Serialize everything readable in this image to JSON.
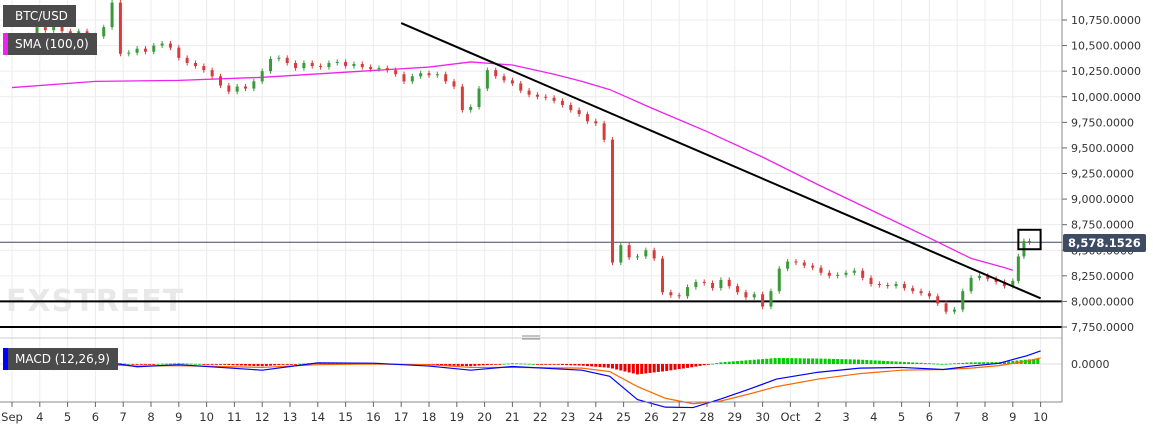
{
  "chart_data": {
    "type": "candlestick",
    "symbol": "BTC/USD",
    "brand": "FXSTREET",
    "price_axis": {
      "ticks": [
        "10,750.0000",
        "10,500.0000",
        "10,250.0000",
        "10,000.0000",
        "9,750.0000",
        "9,500.0000",
        "9,250.0000",
        "9,000.0000",
        "8,750.0000",
        "8,500.0000",
        "8,250.0000",
        "8,000.0000",
        "7,750.0000"
      ],
      "range": [
        7700,
        10950
      ]
    },
    "current_price": 8578.1526,
    "current_price_label": "8,578.1526",
    "x_ticks": [
      "Sep",
      "4",
      "5",
      "6",
      "7",
      "8",
      "9",
      "10",
      "11",
      "12",
      "13",
      "14",
      "15",
      "16",
      "17",
      "18",
      "19",
      "20",
      "21",
      "22",
      "23",
      "24",
      "25",
      "26",
      "27",
      "28",
      "29",
      "30",
      "Oct",
      "2",
      "3",
      "4",
      "5",
      "6",
      "7",
      "8",
      "9",
      "10"
    ],
    "price_path": [
      [
        3,
        10520
      ],
      [
        3.3,
        10540
      ],
      [
        3.6,
        10600
      ],
      [
        3.9,
        10680
      ],
      [
        4.2,
        10650
      ],
      [
        4.5,
        10700
      ],
      [
        4.8,
        10640
      ],
      [
        5.1,
        10560
      ],
      [
        5.4,
        10640
      ],
      [
        5.7,
        10600
      ],
      [
        6.0,
        10590
      ],
      [
        6.3,
        10680
      ],
      [
        6.6,
        10920
      ],
      [
        6.9,
        10420
      ],
      [
        7.2,
        10430
      ],
      [
        7.5,
        10470
      ],
      [
        7.8,
        10440
      ],
      [
        8.1,
        10500
      ],
      [
        8.4,
        10520
      ],
      [
        8.7,
        10480
      ],
      [
        9.0,
        10380
      ],
      [
        9.3,
        10330
      ],
      [
        9.6,
        10300
      ],
      [
        9.9,
        10260
      ],
      [
        10.2,
        10200
      ],
      [
        10.5,
        10110
      ],
      [
        10.8,
        10050
      ],
      [
        11.1,
        10100
      ],
      [
        11.4,
        10080
      ],
      [
        11.7,
        10150
      ],
      [
        12.0,
        10250
      ],
      [
        12.3,
        10370
      ],
      [
        12.6,
        10380
      ],
      [
        12.9,
        10330
      ],
      [
        13.2,
        10280
      ],
      [
        13.5,
        10330
      ],
      [
        13.8,
        10300
      ],
      [
        14.1,
        10290
      ],
      [
        14.4,
        10330
      ],
      [
        14.7,
        10340
      ],
      [
        15.0,
        10300
      ],
      [
        15.3,
        10320
      ],
      [
        15.6,
        10290
      ],
      [
        15.9,
        10270
      ],
      [
        16.2,
        10280
      ],
      [
        16.5,
        10260
      ],
      [
        16.8,
        10220
      ],
      [
        17.1,
        10150
      ],
      [
        17.4,
        10200
      ],
      [
        17.7,
        10230
      ],
      [
        18.0,
        10210
      ],
      [
        18.3,
        10220
      ],
      [
        18.6,
        10150
      ],
      [
        18.9,
        10100
      ],
      [
        19.2,
        9870
      ],
      [
        19.5,
        9900
      ],
      [
        19.8,
        10080
      ],
      [
        20.1,
        10260
      ],
      [
        20.4,
        10200
      ],
      [
        20.7,
        10160
      ],
      [
        21.0,
        10130
      ],
      [
        21.3,
        10060
      ],
      [
        21.6,
        10020
      ],
      [
        21.9,
        10000
      ],
      [
        22.2,
        9990
      ],
      [
        22.5,
        9960
      ],
      [
        22.8,
        9920
      ],
      [
        23.1,
        9870
      ],
      [
        23.4,
        9830
      ],
      [
        23.7,
        9760
      ],
      [
        24.0,
        9740
      ],
      [
        24.3,
        9580
      ],
      [
        24.6,
        8380
      ],
      [
        24.9,
        8550
      ],
      [
        25.2,
        8430
      ],
      [
        25.5,
        8440
      ],
      [
        25.8,
        8500
      ],
      [
        26.1,
        8420
      ],
      [
        26.4,
        8090
      ],
      [
        26.7,
        8060
      ],
      [
        27.0,
        8050
      ],
      [
        27.3,
        8140
      ],
      [
        27.6,
        8190
      ],
      [
        27.9,
        8180
      ],
      [
        28.2,
        8130
      ],
      [
        28.5,
        8210
      ],
      [
        28.8,
        8150
      ],
      [
        29.1,
        8090
      ],
      [
        29.4,
        8040
      ],
      [
        29.7,
        8070
      ],
      [
        30.0,
        7950
      ],
      [
        30.3,
        8100
      ],
      [
        30.6,
        8320
      ],
      [
        30.9,
        8390
      ],
      [
        31.2,
        8380
      ],
      [
        31.5,
        8350
      ],
      [
        31.8,
        8330
      ],
      [
        32.1,
        8280
      ],
      [
        32.4,
        8250
      ],
      [
        32.7,
        8260
      ],
      [
        33.0,
        8280
      ],
      [
        33.3,
        8300
      ],
      [
        33.6,
        8230
      ],
      [
        33.9,
        8170
      ],
      [
        34.2,
        8160
      ],
      [
        34.5,
        8150
      ],
      [
        34.8,
        8170
      ],
      [
        35.1,
        8130
      ],
      [
        35.4,
        8100
      ],
      [
        35.7,
        8080
      ],
      [
        36.0,
        8050
      ],
      [
        36.3,
        7980
      ],
      [
        36.6,
        7900
      ],
      [
        36.9,
        7920
      ],
      [
        37.2,
        8100
      ],
      [
        37.5,
        8230
      ],
      [
        37.8,
        8250
      ],
      [
        38.1,
        8220
      ],
      [
        38.4,
        8190
      ],
      [
        38.7,
        8150
      ],
      [
        39.0,
        8200
      ],
      [
        39.2,
        8440
      ],
      [
        39.4,
        8590
      ],
      [
        39.6,
        8580
      ]
    ],
    "sma": {
      "label": "SMA (100,0)",
      "color": "#ee22ee",
      "values": [
        [
          3,
          10090
        ],
        [
          6,
          10150
        ],
        [
          9,
          10160
        ],
        [
          12,
          10190
        ],
        [
          15,
          10240
        ],
        [
          18,
          10290
        ],
        [
          19.5,
          10340
        ],
        [
          21,
          10310
        ],
        [
          22.5,
          10220
        ],
        [
          23.5,
          10150
        ],
        [
          24.5,
          10070
        ],
        [
          26,
          9890
        ],
        [
          28,
          9660
        ],
        [
          30,
          9410
        ],
        [
          32,
          9140
        ],
        [
          34,
          8880
        ],
        [
          36,
          8620
        ],
        [
          37.5,
          8420
        ],
        [
          38.7,
          8330
        ],
        [
          39,
          8305
        ]
      ]
    },
    "trendline": {
      "color": "#000000",
      "points": [
        [
          17.0,
          10720
        ],
        [
          40.0,
          8030
        ]
      ]
    },
    "horizontal_levels": [
      8000,
      7750
    ],
    "annotation_box": {
      "x": [
        39.2,
        40.0
      ],
      "y": [
        8510,
        8700
      ]
    },
    "macd": {
      "label": "MACD (12,26,9)",
      "zero_label": "0.0000",
      "color_macd": "#0000ff",
      "color_signal": "#ff6600",
      "hist_pos_color": "#00cc00",
      "hist_neg_color": "#ee0000",
      "macd_line": [
        [
          3,
          0
        ],
        [
          4.5,
          -40
        ],
        [
          6,
          25
        ],
        [
          7.5,
          -20
        ],
        [
          9,
          -5
        ],
        [
          12,
          -45
        ],
        [
          14,
          8
        ],
        [
          16,
          6
        ],
        [
          18,
          -15
        ],
        [
          19.5,
          -45
        ],
        [
          21,
          -18
        ],
        [
          23.5,
          -45
        ],
        [
          24.5,
          -90
        ],
        [
          25.5,
          -260
        ],
        [
          26.5,
          -315
        ],
        [
          27.5,
          -318
        ],
        [
          28.5,
          -255
        ],
        [
          29.5,
          -185
        ],
        [
          30.5,
          -110
        ],
        [
          32,
          -60
        ],
        [
          33.5,
          -30
        ],
        [
          35,
          -25
        ],
        [
          36.5,
          -40
        ],
        [
          37.5,
          -15
        ],
        [
          38.5,
          5
        ],
        [
          39.5,
          60
        ],
        [
          40,
          95
        ]
      ],
      "signal_line": [
        [
          3,
          -5
        ],
        [
          4.5,
          -12
        ],
        [
          6,
          0
        ],
        [
          7.5,
          -15
        ],
        [
          9,
          -12
        ],
        [
          12,
          -25
        ],
        [
          14,
          -5
        ],
        [
          16,
          0
        ],
        [
          18,
          -5
        ],
        [
          19.5,
          -25
        ],
        [
          21,
          -25
        ],
        [
          23.5,
          -30
        ],
        [
          24.5,
          -55
        ],
        [
          25.5,
          -165
        ],
        [
          26.5,
          -250
        ],
        [
          27.5,
          -290
        ],
        [
          28.5,
          -270
        ],
        [
          29.5,
          -220
        ],
        [
          30.5,
          -165
        ],
        [
          32,
          -110
        ],
        [
          33.5,
          -70
        ],
        [
          35,
          -45
        ],
        [
          36.5,
          -40
        ],
        [
          37.5,
          -30
        ],
        [
          38.5,
          -12
        ],
        [
          39.5,
          20
        ],
        [
          40,
          45
        ]
      ]
    }
  }
}
